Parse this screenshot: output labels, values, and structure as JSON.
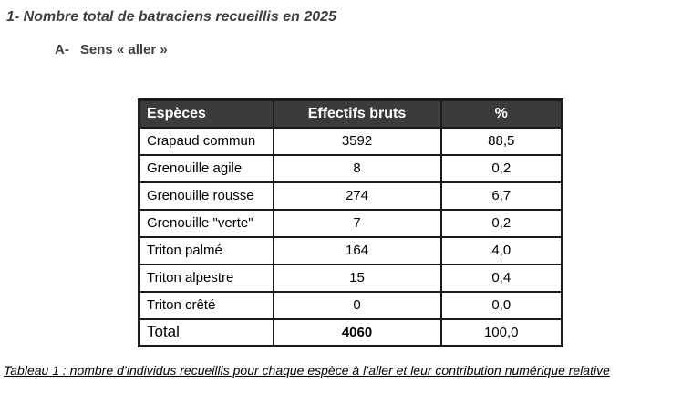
{
  "page": {
    "title": "1- Nombre total de batraciens recueillis en 2025",
    "section_letter": "A-",
    "section_title": "Sens « aller »",
    "caption": "Tableau 1 : nombre d’individus recueillis pour chaque espèce à l’aller et leur contribution numérique relative"
  },
  "colors": {
    "heading_text": "#404040",
    "table_header_bg": "#3b3b3b",
    "table_header_text": "#ffffff",
    "table_border": "#1a1a1a",
    "body_text": "#000000"
  },
  "table": {
    "headers": [
      "Espèces",
      "Effectifs bruts",
      "%"
    ],
    "rows": [
      {
        "species": "Crapaud commun",
        "count": "3592",
        "pct": "88,5"
      },
      {
        "species": "Grenouille agile",
        "count": "8",
        "pct": "0,2"
      },
      {
        "species": "Grenouille rousse",
        "count": "274",
        "pct": "6,7"
      },
      {
        "species": "Grenouille \"verte\"",
        "count": "7",
        "pct": "0,2"
      },
      {
        "species": "Triton palmé",
        "count": "164",
        "pct": "4,0"
      },
      {
        "species": "Triton alpestre",
        "count": "15",
        "pct": "0,4"
      },
      {
        "species": "Triton crêté",
        "count": "0",
        "pct": "0,0"
      }
    ],
    "total": {
      "label": "Total",
      "count": "4060",
      "pct": "100,0"
    }
  }
}
